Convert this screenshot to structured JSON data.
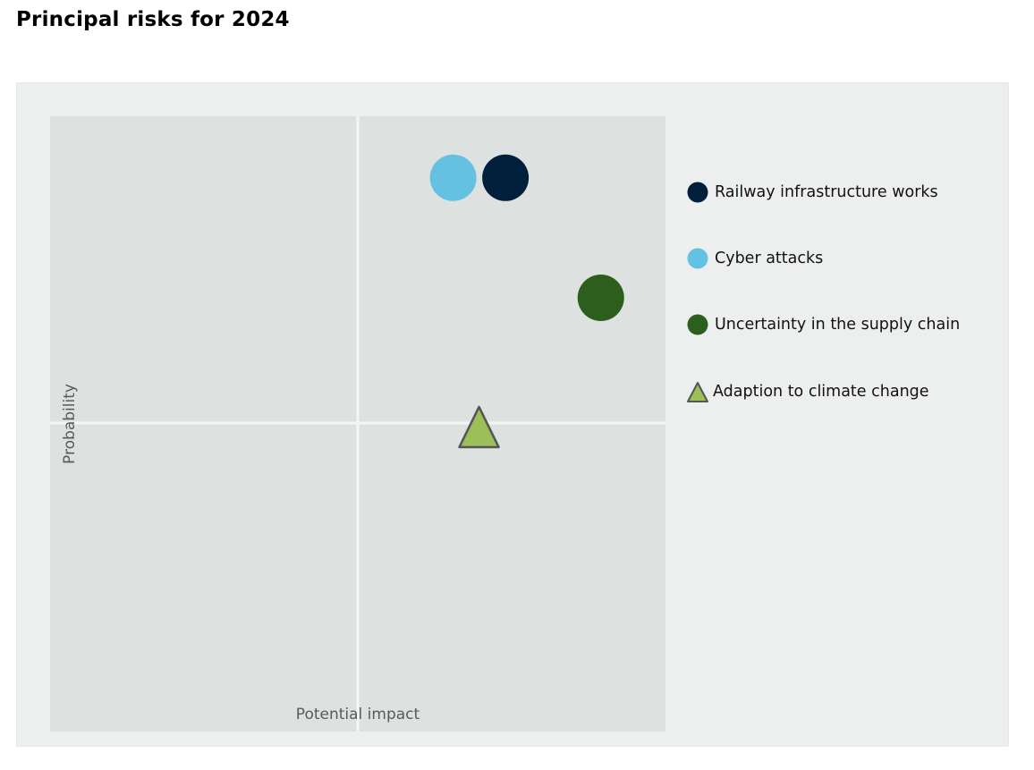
{
  "title": "Principal risks for 2024",
  "chart_data": {
    "type": "scatter",
    "title": "Principal risks for 2024",
    "xlabel": "Potential impact",
    "ylabel": "Probability",
    "xlim": [
      0,
      1
    ],
    "ylim": [
      0,
      1
    ],
    "grid": "quadrant dividers at midpoint",
    "legend_position": "right",
    "series": [
      {
        "name": "Railway infrastructure works",
        "marker": "circle",
        "color": "#001f3c",
        "x": 0.74,
        "y": 0.9
      },
      {
        "name": "Cyber attacks",
        "marker": "circle",
        "color": "#65c1e2",
        "x": 0.655,
        "y": 0.9
      },
      {
        "name": "Uncertainty in the supply chain",
        "marker": "circle",
        "color": "#2c5e1e",
        "x": 0.895,
        "y": 0.705
      },
      {
        "name": "Adaption to climate change",
        "marker": "triangle",
        "color": "#9cbf5a",
        "x": 0.697,
        "y": 0.495
      }
    ]
  },
  "colors": {
    "panel_background": "#edefee",
    "plot_background": "#dde1df",
    "divider": "#f4f6f5",
    "triangle_stroke": "#555555"
  }
}
